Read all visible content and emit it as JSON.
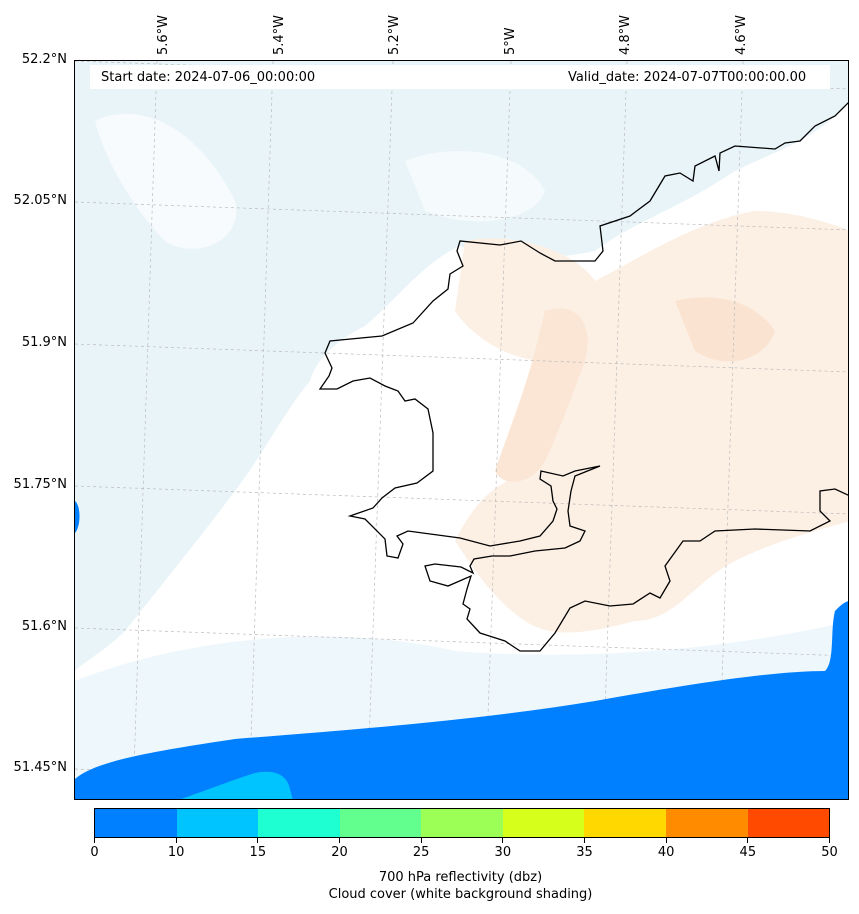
{
  "header": {
    "start_date": "Start date: 2024-07-06_00:00:00",
    "valid_date": "Valid_date: 2024-07-07T00:00:00.00"
  },
  "axes": {
    "lon_labels": [
      "5.6°W",
      "5.4°W",
      "5.2°W",
      "5°W",
      "4.8°W",
      "4.6°W"
    ],
    "lat_labels": [
      "52.2°N",
      "52.05°N",
      "51.9°N",
      "51.75°N",
      "51.6°N",
      "51.45°N"
    ],
    "gridlines": "dashed-grey"
  },
  "colorbar": {
    "ticks": [
      "0",
      "10",
      "15",
      "20",
      "25",
      "30",
      "35",
      "40",
      "45",
      "50"
    ],
    "colors": [
      "#0080ff",
      "#00c4ff",
      "#1effd2",
      "#62ff8e",
      "#9cff55",
      "#d6ff1b",
      "#ffd800",
      "#ff8c00",
      "#ff4a00"
    ],
    "label_line1": "700 hPa reflectivity (dbz)",
    "label_line2": "Cloud cover (white background shading)"
  },
  "shading": {
    "sea_cloud": "#e6f3f8",
    "land_cloud": "#fcece0",
    "precip_low": "#0080ff",
    "precip_mid": "#00c4ff"
  }
}
